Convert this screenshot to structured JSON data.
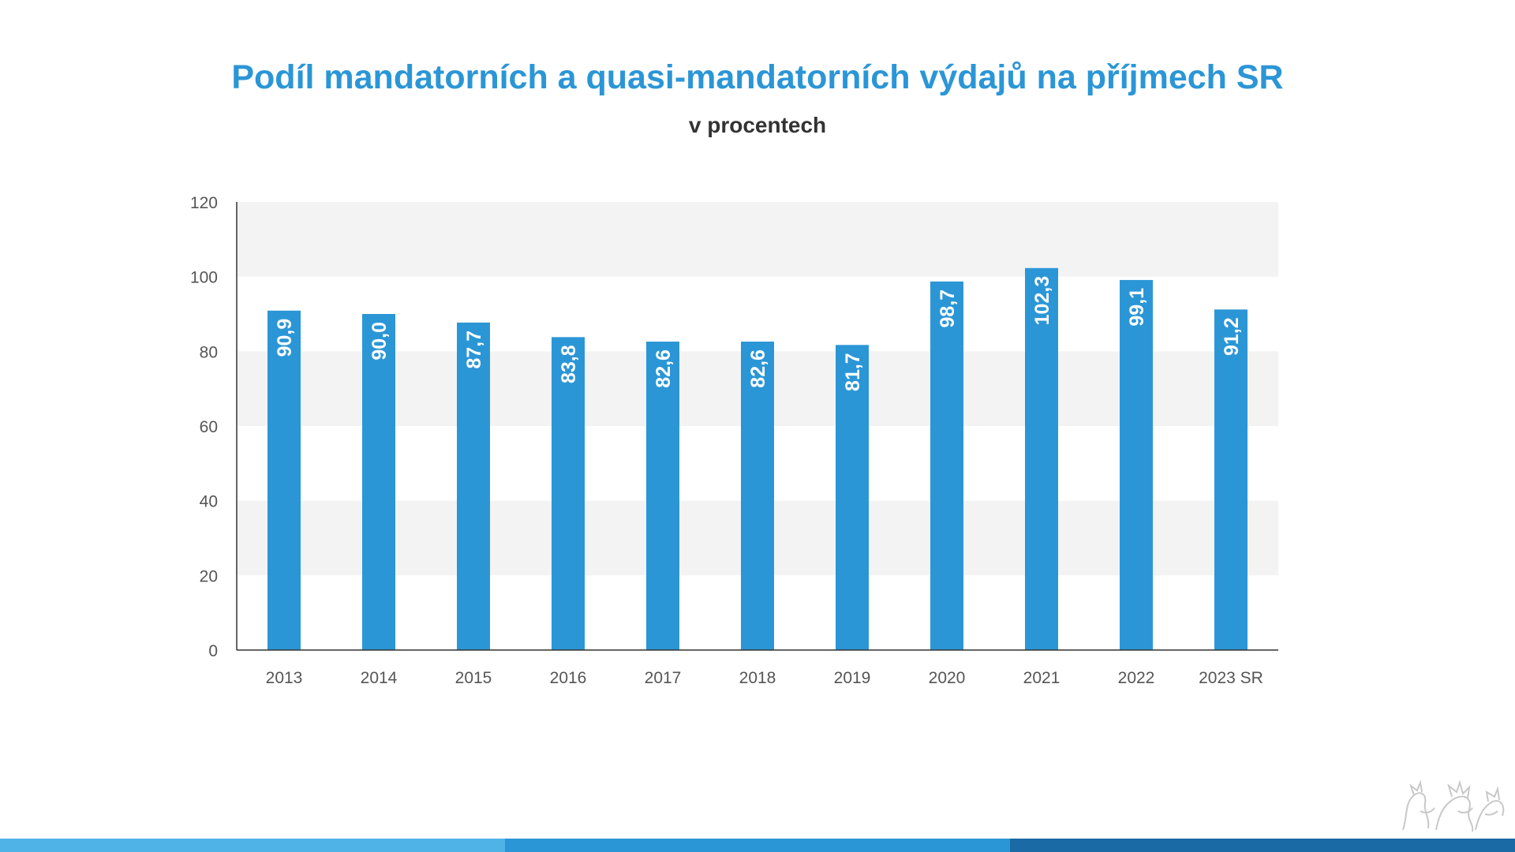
{
  "title": "Podíl mandatorních a quasi-mandatorních výdajů na příjmech SR",
  "subtitle": "v procentech",
  "colors": {
    "title": "#2b96d6",
    "bar": "#2b96d6",
    "band": "#f3f3f3",
    "footer": [
      "#4fb3e8",
      "#2b96d6",
      "#1a6aa6"
    ]
  },
  "chart_data": {
    "type": "bar",
    "categories": [
      "2013",
      "2014",
      "2015",
      "2016",
      "2017",
      "2018",
      "2019",
      "2020",
      "2021",
      "2022",
      "2023 SR"
    ],
    "values": [
      90.9,
      90.0,
      87.7,
      83.8,
      82.6,
      82.6,
      81.7,
      98.7,
      102.3,
      99.1,
      91.2
    ],
    "value_labels": [
      "90,9",
      "90,0",
      "87,7",
      "83,8",
      "82,6",
      "82,6",
      "81,7",
      "98,7",
      "102,3",
      "99,1",
      "91,2"
    ],
    "ylim": [
      0,
      120
    ],
    "yticks": [
      "0",
      "20",
      "40",
      "60",
      "80",
      "100",
      "120"
    ],
    "xlabel": "",
    "ylabel": "",
    "alternating_bands": true,
    "legend": "none"
  }
}
